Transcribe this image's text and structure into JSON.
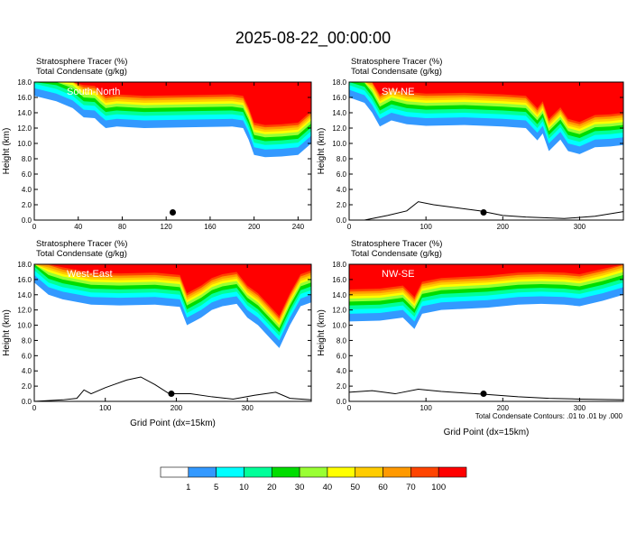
{
  "figure": {
    "title": "2025-08-22_00:00:00",
    "footnote": "Total Condensate Contours: .01 to .01 by .000",
    "xlabel": "Grid Point (dx=15km)",
    "ylabel": "Height (km)"
  },
  "colors": {
    "levels": [
      "#ffffff",
      "#3399ff",
      "#00ffff",
      "#00ff99",
      "#00dd00",
      "#99ff33",
      "#ffff00",
      "#ffcc00",
      "#ff9900",
      "#ff4400",
      "#ff0000"
    ]
  },
  "colorbar": {
    "labels": [
      "1",
      "5",
      "10",
      "20",
      "30",
      "40",
      "50",
      "60",
      "70",
      "100"
    ]
  },
  "chart_data": [
    {
      "type": "heatmap",
      "name": "South-North",
      "title_line1": "Stratosphere Tracer   (%)",
      "title_line2": "Total Condensate   (g/kg)",
      "xlim": [
        0,
        252
      ],
      "ylim": [
        0,
        18
      ],
      "xticks": [
        0,
        40,
        80,
        120,
        160,
        200,
        240
      ],
      "yticks": [
        0,
        2,
        4,
        6,
        8,
        10,
        12,
        14,
        16,
        18
      ],
      "xlabel": "",
      "ylabel": "Height (km)",
      "tropopause_base": [
        [
          0,
          16.2
        ],
        [
          20,
          15.5
        ],
        [
          35,
          14.6
        ],
        [
          45,
          13.4
        ],
        [
          55,
          13.3
        ],
        [
          60,
          12.6
        ],
        [
          65,
          12.0
        ],
        [
          75,
          12.2
        ],
        [
          100,
          12.0
        ],
        [
          140,
          12.1
        ],
        [
          180,
          12.2
        ],
        [
          190,
          12.0
        ],
        [
          195,
          10.5
        ],
        [
          200,
          8.5
        ],
        [
          210,
          8.2
        ],
        [
          225,
          8.3
        ],
        [
          240,
          8.5
        ],
        [
          248,
          9.5
        ],
        [
          252,
          10.0
        ]
      ],
      "marker": {
        "x": 126,
        "y": 1.0
      },
      "terrain": []
    },
    {
      "type": "heatmap",
      "name": "SW-NE",
      "title_line1": "Stratosphere Tracer   (%)",
      "title_line2": "Total Condensate   (g/kg)",
      "xlim": [
        0,
        357
      ],
      "ylim": [
        0,
        18
      ],
      "xticks": [
        0,
        100,
        200,
        300
      ],
      "yticks": [
        0,
        2,
        4,
        6,
        8,
        10,
        12,
        14,
        16,
        18
      ],
      "xlabel": "",
      "ylabel": "Height (km)",
      "tropopause_base": [
        [
          0,
          16.0
        ],
        [
          20,
          15.3
        ],
        [
          30,
          14.0
        ],
        [
          40,
          12.2
        ],
        [
          55,
          13.0
        ],
        [
          75,
          12.5
        ],
        [
          100,
          12.3
        ],
        [
          150,
          12.4
        ],
        [
          200,
          12.2
        ],
        [
          230,
          12.0
        ],
        [
          245,
          10.4
        ],
        [
          252,
          11.3
        ],
        [
          260,
          9.0
        ],
        [
          275,
          10.5
        ],
        [
          285,
          9.0
        ],
        [
          300,
          8.6
        ],
        [
          320,
          9.5
        ],
        [
          340,
          9.6
        ],
        [
          357,
          9.8
        ]
      ],
      "marker": {
        "x": 175,
        "y": 1.0
      },
      "terrain": [
        [
          0,
          0
        ],
        [
          20,
          0
        ],
        [
          50,
          0.6
        ],
        [
          75,
          1.2
        ],
        [
          90,
          2.4
        ],
        [
          110,
          2.0
        ],
        [
          140,
          1.6
        ],
        [
          170,
          1.2
        ],
        [
          200,
          0.6
        ],
        [
          230,
          0.4
        ],
        [
          280,
          0.2
        ],
        [
          320,
          0.5
        ],
        [
          357,
          1.1
        ]
      ]
    },
    {
      "type": "heatmap",
      "name": "West-East",
      "title_line1": "Stratosphere Tracer   (%)",
      "title_line2": "Total Condensate   (g/kg)",
      "xlim": [
        0,
        390
      ],
      "ylim": [
        0,
        18
      ],
      "xticks": [
        0,
        100,
        200,
        300
      ],
      "yticks": [
        0,
        2,
        4,
        6,
        8,
        10,
        12,
        14,
        16,
        18
      ],
      "xlabel": "Grid Point (dx=15km)",
      "ylabel": "Height (km)",
      "tropopause_base": [
        [
          0,
          15.6
        ],
        [
          20,
          14.0
        ],
        [
          40,
          13.4
        ],
        [
          80,
          12.7
        ],
        [
          120,
          12.6
        ],
        [
          170,
          12.7
        ],
        [
          205,
          12.4
        ],
        [
          215,
          10.0
        ],
        [
          225,
          10.5
        ],
        [
          235,
          11.0
        ],
        [
          250,
          12.0
        ],
        [
          265,
          12.5
        ],
        [
          285,
          12.8
        ],
        [
          300,
          11.0
        ],
        [
          315,
          10.0
        ],
        [
          330,
          8.5
        ],
        [
          345,
          7.0
        ],
        [
          360,
          10.0
        ],
        [
          375,
          12.5
        ],
        [
          390,
          13.0
        ]
      ],
      "marker": {
        "x": 193,
        "y": 1.0
      },
      "terrain": [
        [
          0,
          0
        ],
        [
          40,
          0.2
        ],
        [
          60,
          0.4
        ],
        [
          70,
          1.5
        ],
        [
          80,
          1.0
        ],
        [
          100,
          1.8
        ],
        [
          130,
          2.8
        ],
        [
          150,
          3.2
        ],
        [
          170,
          2.2
        ],
        [
          190,
          1.0
        ],
        [
          220,
          1.0
        ],
        [
          250,
          0.6
        ],
        [
          280,
          0.3
        ],
        [
          310,
          0.8
        ],
        [
          340,
          1.2
        ],
        [
          360,
          0.4
        ],
        [
          390,
          0.2
        ]
      ]
    },
    {
      "type": "heatmap",
      "name": "NW-SE",
      "title_line1": "Stratosphere Tracer   (%)",
      "title_line2": "Total Condensate   (g/kg)",
      "xlim": [
        0,
        357
      ],
      "ylim": [
        0,
        18
      ],
      "xticks": [
        0,
        100,
        200,
        300
      ],
      "yticks": [
        0,
        2,
        4,
        6,
        8,
        10,
        12,
        14,
        16,
        18
      ],
      "xlabel": "Grid Point (dx=15km)",
      "ylabel": "Height (km)",
      "tropopause_base": [
        [
          0,
          10.5
        ],
        [
          40,
          10.6
        ],
        [
          70,
          11.0
        ],
        [
          85,
          9.5
        ],
        [
          95,
          11.5
        ],
        [
          120,
          12.0
        ],
        [
          180,
          12.3
        ],
        [
          220,
          12.7
        ],
        [
          250,
          12.8
        ],
        [
          280,
          12.7
        ],
        [
          300,
          12.5
        ],
        [
          330,
          13.2
        ],
        [
          357,
          14.0
        ]
      ],
      "marker": {
        "x": 175,
        "y": 1.0
      },
      "terrain": [
        [
          0,
          1.2
        ],
        [
          30,
          1.4
        ],
        [
          60,
          1.0
        ],
        [
          90,
          1.6
        ],
        [
          120,
          1.3
        ],
        [
          150,
          1.1
        ],
        [
          180,
          0.9
        ],
        [
          220,
          0.6
        ],
        [
          260,
          0.4
        ],
        [
          300,
          0.3
        ],
        [
          357,
          0.2
        ]
      ]
    }
  ]
}
